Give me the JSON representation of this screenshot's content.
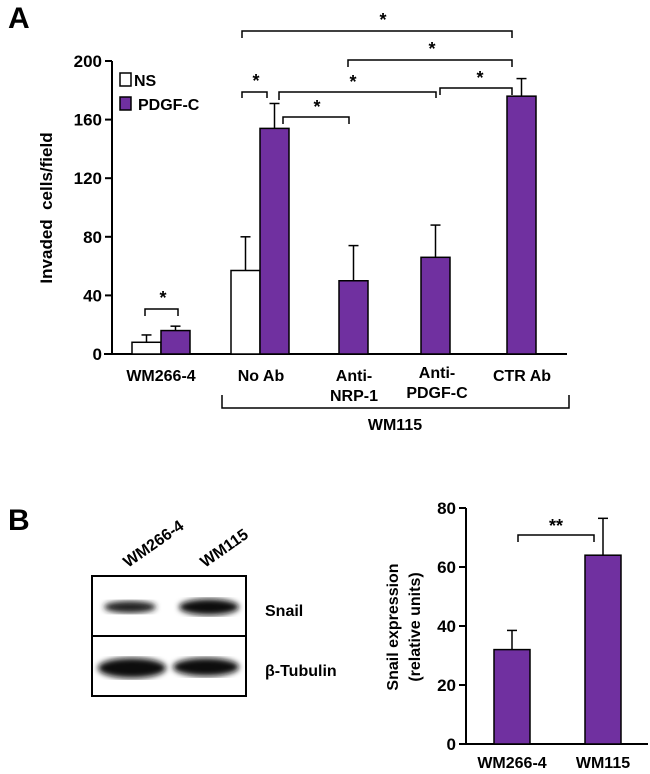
{
  "colors": {
    "pdgf": "#7030a0",
    "ns": "#ffffff",
    "axis": "#000000"
  },
  "chart_data": [
    {
      "panel": "A",
      "type": "bar",
      "ylabel": "Invaded  cells/field",
      "ylim": [
        0,
        200
      ],
      "yticks": [
        "0",
        "40",
        "80",
        "120",
        "160",
        "200"
      ],
      "ytick_values": [
        0,
        40,
        80,
        120,
        160,
        200
      ],
      "categories": [
        "WM266-4",
        "No Ab",
        "Anti-NRP-1",
        "Anti-PDGF-C",
        "CTR Ab"
      ],
      "category_lines": [
        [
          "WM266-4"
        ],
        [
          "No Ab"
        ],
        [
          "Anti-",
          "NRP-1"
        ],
        [
          "Anti-",
          "PDGF-C"
        ],
        [
          "CTR Ab"
        ]
      ],
      "group_label": "WM115",
      "legend": {
        "placement": "top-left",
        "entries": [
          "NS",
          "PDGF-C"
        ]
      },
      "series": [
        {
          "name": "NS",
          "values": [
            8,
            57,
            null,
            null,
            null
          ],
          "errors": [
            5,
            23,
            null,
            null,
            null
          ]
        },
        {
          "name": "PDGF-C",
          "values": [
            16,
            154,
            50,
            66,
            176
          ],
          "errors": [
            3,
            17,
            24,
            22,
            12
          ]
        }
      ],
      "significance": [
        "*",
        "*",
        "*",
        "*",
        "*",
        "*",
        "*"
      ]
    },
    {
      "panel": "B",
      "type": "bar",
      "ylabel": "Snail expression",
      "ylabel2": "(relative units)",
      "ylim": [
        0,
        80
      ],
      "yticks": [
        "0",
        "20",
        "40",
        "60",
        "80"
      ],
      "ytick_values": [
        0,
        20,
        40,
        60,
        80
      ],
      "categories": [
        "WM266-4",
        "WM115"
      ],
      "series": [
        {
          "name": "Snail",
          "values": [
            32,
            64
          ],
          "errors": [
            6.5,
            12.5
          ]
        }
      ],
      "significance": [
        "**"
      ]
    }
  ],
  "blot": {
    "lanes": [
      "WM266-4",
      "WM115"
    ],
    "rows": [
      "Snail",
      "β-Tubulin"
    ]
  },
  "panel_labels": [
    "A",
    "B"
  ]
}
